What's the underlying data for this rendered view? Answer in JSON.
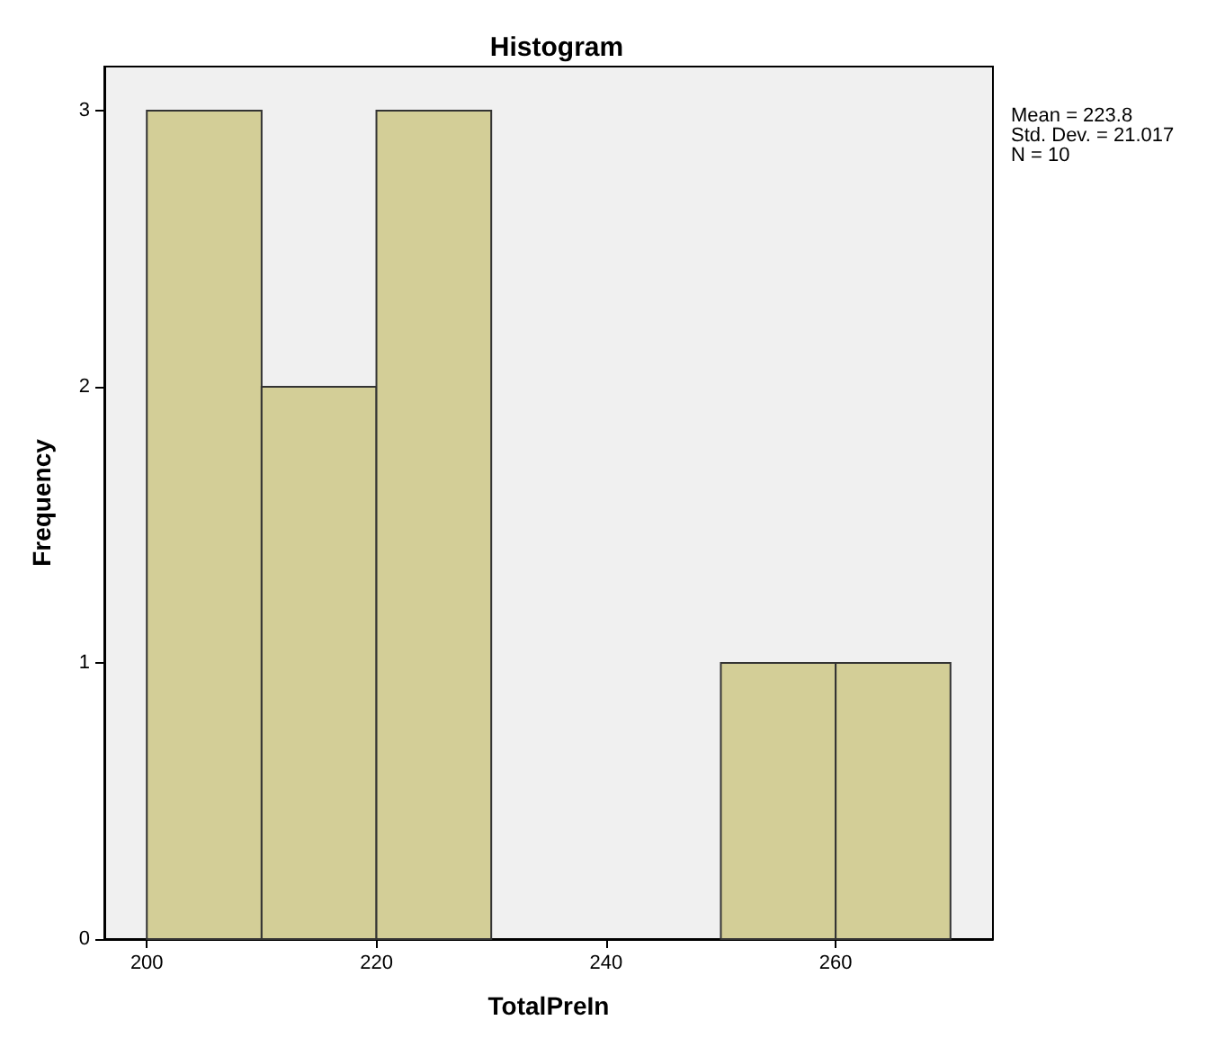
{
  "chart_data": {
    "type": "histogram",
    "title": "Histogram",
    "xlabel": "TotalPreIn",
    "ylabel": "Frequency",
    "bins": [
      200,
      210,
      220,
      230,
      240,
      250,
      260,
      270
    ],
    "values": [
      3,
      2,
      3,
      0,
      0,
      1,
      1
    ],
    "color": "#d3ce97",
    "xlim": [
      196.3,
      273.7
    ],
    "xticks": [
      200,
      220,
      240,
      260
    ],
    "ylim": [
      0,
      3.16
    ],
    "yticks": [
      0,
      1,
      2,
      3
    ],
    "grid": false,
    "annotations": [
      "Mean = 223.8",
      "Std. Dev. = 21.017",
      "N = 10"
    ]
  }
}
